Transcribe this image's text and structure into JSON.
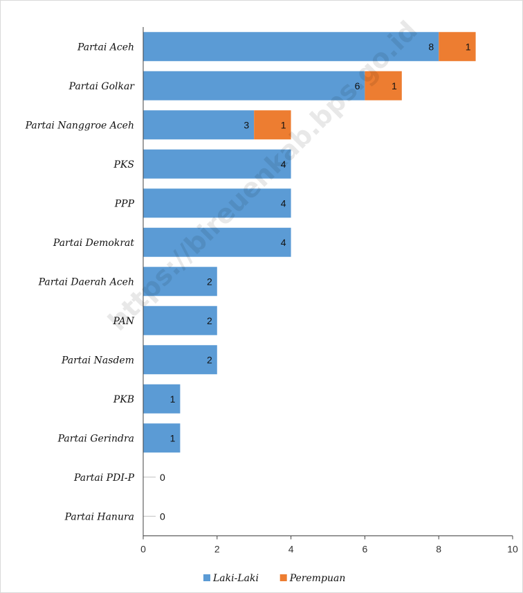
{
  "chart_data": {
    "type": "bar",
    "orientation": "horizontal",
    "stacked": true,
    "categories": [
      "Partai Aceh",
      "Partai Golkar",
      "Partai Nanggroe Aceh",
      "PKS",
      "PPP",
      "Partai Demokrat",
      "Partai Daerah Aceh",
      "PAN",
      "Partai Nasdem",
      "PKB",
      "Partai Gerindra",
      "Partai PDI-P",
      "Partai Hanura"
    ],
    "series": [
      {
        "name": "Laki-Laki",
        "color": "#5b9bd5",
        "values": [
          8,
          6,
          3,
          4,
          4,
          4,
          2,
          2,
          2,
          1,
          1,
          0,
          0
        ]
      },
      {
        "name": "Perempuan",
        "color": "#ed7d31",
        "values": [
          1,
          1,
          1,
          0,
          0,
          0,
          0,
          0,
          0,
          0,
          0,
          0,
          0
        ]
      }
    ],
    "xlim": [
      0,
      10
    ],
    "xticks": [
      "0",
      "2",
      "4",
      "6",
      "8",
      "10"
    ],
    "grid": false,
    "legend_position": "bottom"
  },
  "watermark": "https://bireuenkab.bps.go.id"
}
